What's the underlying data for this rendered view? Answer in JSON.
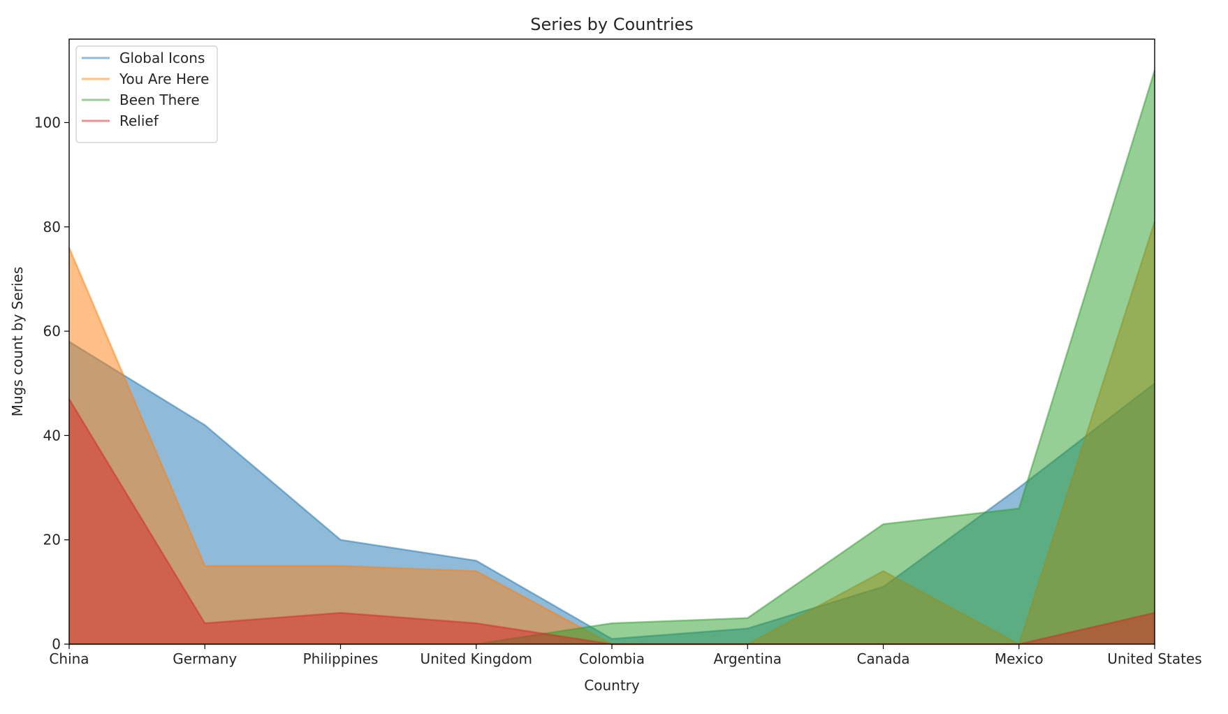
{
  "chart_data": {
    "type": "area",
    "title": "Series by Countries",
    "xlabel": "Country",
    "ylabel": "Mugs count by Series",
    "categories": [
      "China",
      "Germany",
      "Philippines",
      "United Kingdom",
      "Colombia",
      "Argentina",
      "Canada",
      "Mexico",
      "United States"
    ],
    "ylim": [
      0,
      116
    ],
    "yticks": [
      0,
      20,
      40,
      60,
      80,
      100
    ],
    "stacked": false,
    "grid": false,
    "legend_position": "upper-left",
    "series": [
      {
        "name": "Global Icons",
        "color": "#1f77b4",
        "values": [
          58,
          42,
          20,
          16,
          1,
          3,
          11,
          30,
          50
        ]
      },
      {
        "name": "You Are Here",
        "color": "#ff7f0e",
        "values": [
          76,
          15,
          15,
          14,
          0,
          0,
          14,
          0,
          81
        ]
      },
      {
        "name": "Been There",
        "color": "#2ca02c",
        "values": [
          0,
          0,
          0,
          0,
          4,
          5,
          23,
          26,
          110
        ]
      },
      {
        "name": "Relief",
        "color": "#d62728",
        "values": [
          47,
          4,
          6,
          4,
          0,
          0,
          0,
          0,
          6
        ]
      }
    ]
  }
}
